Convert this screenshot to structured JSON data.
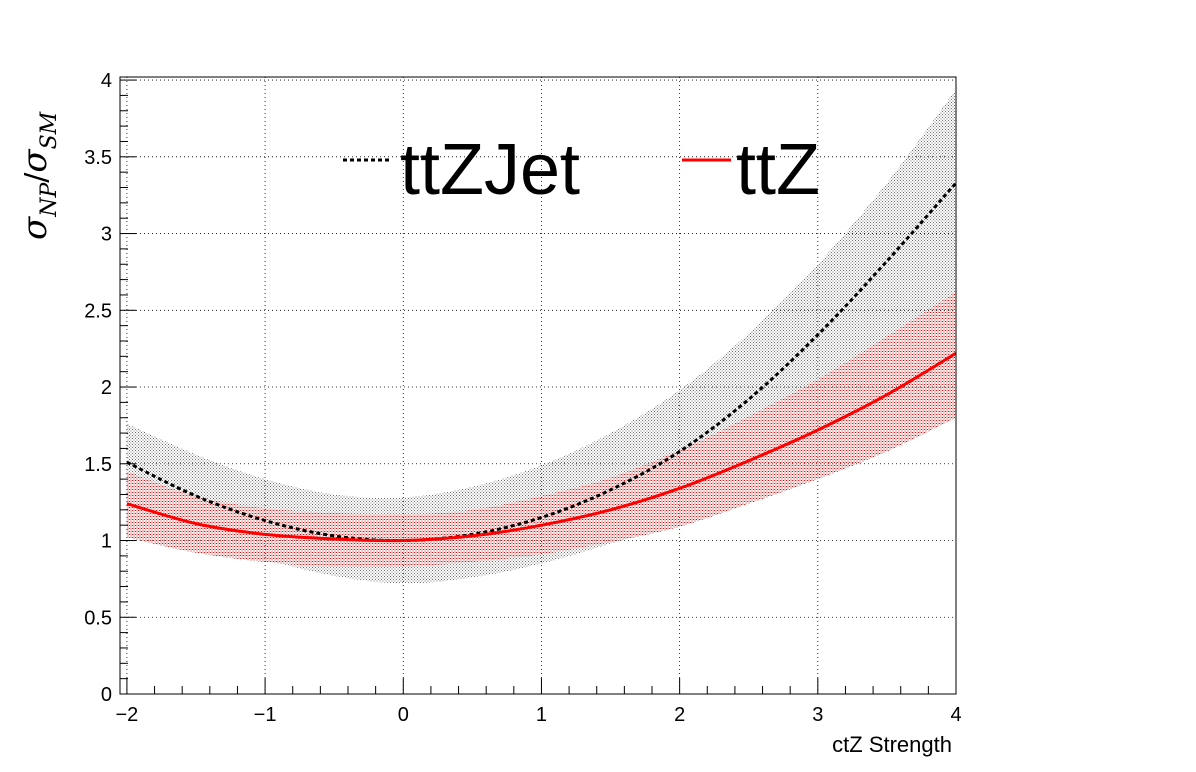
{
  "chart_data": {
    "type": "line",
    "xlabel": "ctZ Strength",
    "ylabel": {
      "main": "σ",
      "sub1": "NP",
      "slash": "/",
      "main2": "σ",
      "sub2": "SM"
    },
    "xlim": [
      -2.05,
      4
    ],
    "ylim": [
      0,
      4.02
    ],
    "xticks": [
      -2,
      -1,
      0,
      1,
      2,
      3,
      4
    ],
    "xtick_labels": [
      "−2",
      "−1",
      "0",
      "1",
      "2",
      "3",
      "4"
    ],
    "yticks": [
      0,
      0.5,
      1,
      1.5,
      2,
      2.5,
      3,
      3.5,
      4
    ],
    "ytick_labels": [
      "0",
      "0.5",
      "1",
      "1.5",
      "2",
      "2.5",
      "3",
      "3.5",
      "4"
    ],
    "grid": true,
    "legend_position": "top",
    "series": [
      {
        "name": "ttZJet",
        "style": "dotted",
        "color": "#000000",
        "band_color": "#9e9e9e",
        "x": [
          -2,
          -1.5,
          -1,
          -0.5,
          0,
          0.5,
          1,
          1.5,
          2,
          2.5,
          3,
          3.5,
          4
        ],
        "y": [
          1.51,
          1.29,
          1.13,
          1.03,
          1.0,
          1.04,
          1.15,
          1.33,
          1.58,
          1.92,
          2.34,
          2.82,
          3.33
        ],
        "y_low": [
          1.26,
          1.05,
          0.88,
          0.77,
          0.72,
          0.76,
          0.85,
          0.98,
          1.12,
          1.29,
          1.47,
          1.68,
          1.9
        ],
        "y_high": [
          1.76,
          1.56,
          1.4,
          1.3,
          1.28,
          1.35,
          1.49,
          1.7,
          1.98,
          2.35,
          2.8,
          3.33,
          3.94
        ]
      },
      {
        "name": "ttZ",
        "style": "solid",
        "color": "#ff0000",
        "band_color": "#d24a4a",
        "x": [
          -2,
          -1.5,
          -1,
          -0.5,
          0,
          0.5,
          1,
          1.5,
          2,
          2.5,
          3,
          3.5,
          4
        ],
        "y": [
          1.24,
          1.11,
          1.04,
          1.01,
          1.0,
          1.03,
          1.1,
          1.2,
          1.34,
          1.52,
          1.72,
          1.95,
          2.22
        ],
        "y_low": [
          1.02,
          0.92,
          0.86,
          0.83,
          0.83,
          0.86,
          0.91,
          0.99,
          1.09,
          1.24,
          1.4,
          1.58,
          1.8
        ],
        "y_high": [
          1.45,
          1.29,
          1.21,
          1.18,
          1.17,
          1.2,
          1.29,
          1.41,
          1.59,
          1.81,
          2.05,
          2.33,
          2.62
        ]
      }
    ]
  }
}
